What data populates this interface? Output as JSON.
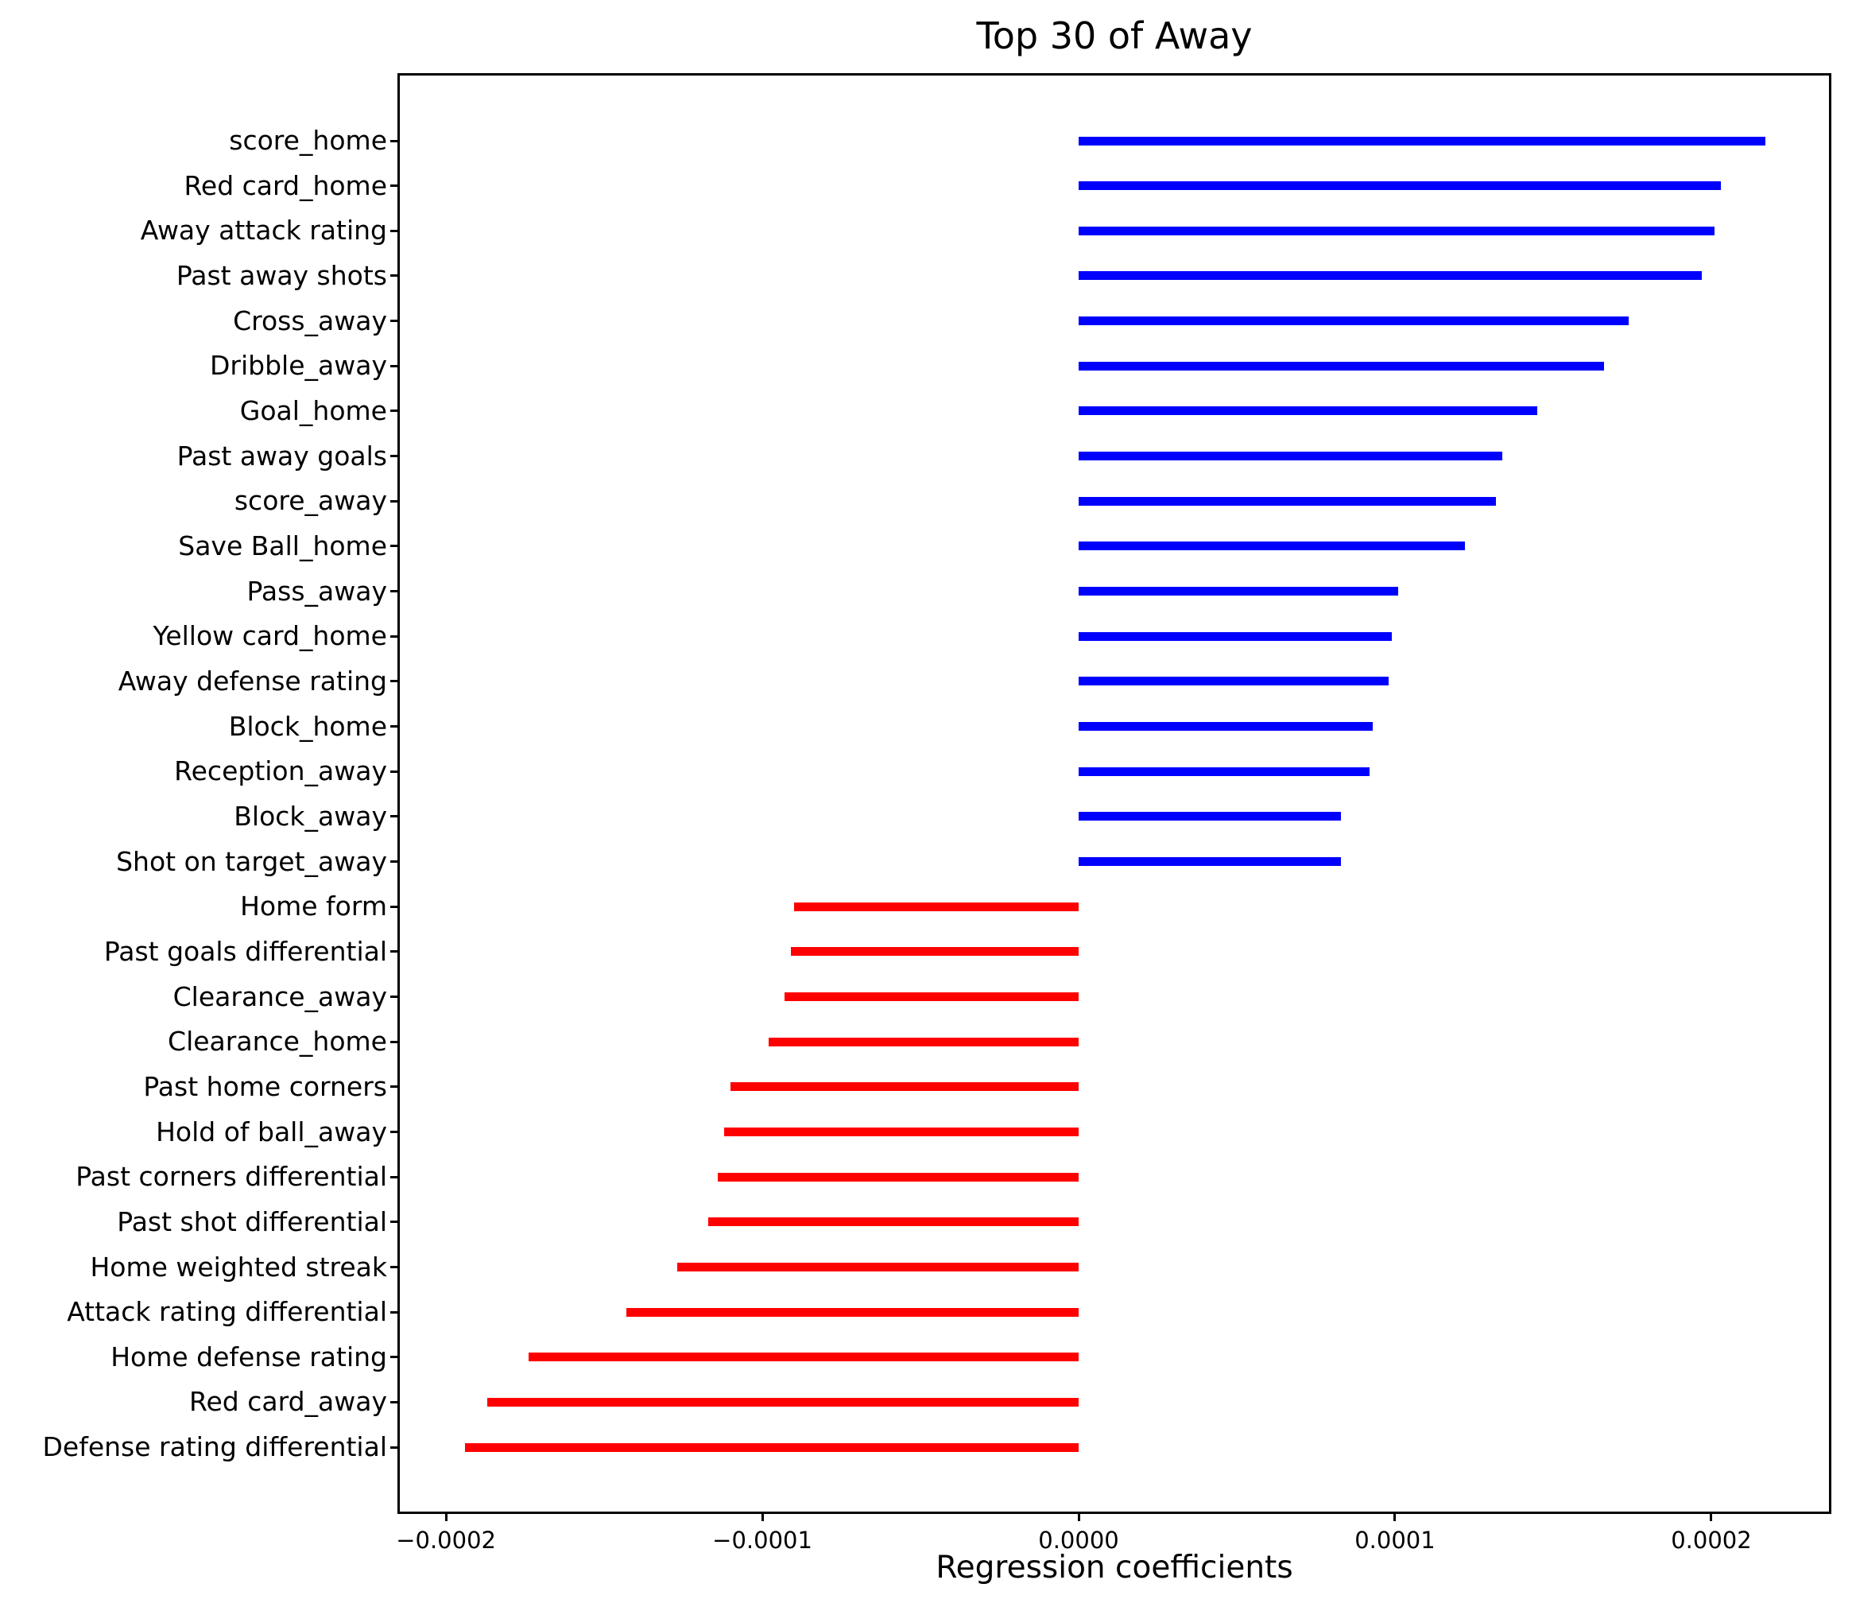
{
  "chart_data": {
    "type": "bar",
    "orientation": "horizontal",
    "title": "Top 30 of Away",
    "xlabel": "Regression coefficients",
    "legend": "none",
    "grid": false,
    "categories": [
      "score_home",
      "Red card_home",
      "Away attack rating",
      "Past away shots",
      "Cross_away",
      "Dribble_away",
      "Goal_home",
      "Past away goals",
      "score_away",
      "Save Ball_home",
      "Pass_away",
      "Yellow card_home",
      "Away defense rating",
      "Block_home",
      "Reception_away",
      "Block_away",
      "Shot on target_away",
      "Home form",
      "Past goals differential",
      "Clearance_away",
      "Clearance_home",
      "Past home corners",
      "Hold of ball_away",
      "Past corners differential",
      "Past shot differential",
      "Home weighted streak",
      "Attack rating differential",
      "Home defense rating",
      "Red card_away",
      "Defense rating differential"
    ],
    "values": [
      0.000217,
      0.000203,
      0.000201,
      0.000197,
      0.000174,
      0.000166,
      0.000145,
      0.000134,
      0.000132,
      0.000122,
      0.000101,
      9.9e-05,
      9.8e-05,
      9.3e-05,
      9.2e-05,
      8.3e-05,
      8.3e-05,
      -9e-05,
      -9.1e-05,
      -9.3e-05,
      -9.8e-05,
      -0.00011,
      -0.000112,
      -0.000114,
      -0.000117,
      -0.000127,
      -0.000143,
      -0.000174,
      -0.000187,
      -0.000194
    ],
    "positive_color": "#0000ff",
    "negative_color": "#ff0000",
    "xlim": [
      -0.0002146,
      0.0002372
    ],
    "xticks": [
      -0.0002,
      -0.0001,
      0.0,
      0.0001,
      0.0002
    ],
    "xtick_labels": [
      "−0.0002",
      "−0.0001",
      "0.0000",
      "0.0001",
      "0.0002"
    ]
  }
}
